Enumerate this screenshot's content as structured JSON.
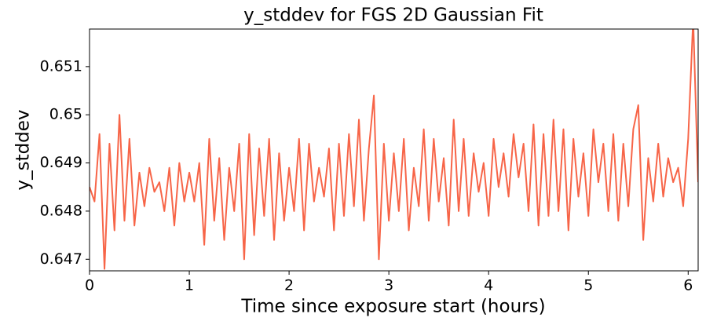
{
  "chart_data": {
    "type": "line",
    "title": "y_stddev for FGS 2D Gaussian Fit",
    "x_label": "Time since exposure start (hours)",
    "y_label": "y_stddev",
    "xlim": [
      0,
      6.1
    ],
    "ylim": [
      0.64676,
      0.65178
    ],
    "xticks": [
      0,
      1,
      2,
      3,
      4,
      5,
      6
    ],
    "yticks": [
      0.647,
      0.648,
      0.649,
      0.65,
      0.651
    ],
    "x": [
      0,
      0.05,
      0.1,
      0.15,
      0.2,
      0.25,
      0.3,
      0.35,
      0.4,
      0.45,
      0.5,
      0.55,
      0.6,
      0.65,
      0.7,
      0.75,
      0.8,
      0.85,
      0.9,
      0.95,
      1,
      1.05,
      1.1,
      1.15,
      1.2,
      1.25,
      1.3,
      1.35,
      1.4,
      1.45,
      1.5,
      1.55,
      1.6,
      1.65,
      1.7,
      1.75,
      1.8,
      1.85,
      1.9,
      1.95,
      2,
      2.05,
      2.1,
      2.15,
      2.2,
      2.25,
      2.3,
      2.35,
      2.4,
      2.45,
      2.5,
      2.55,
      2.6,
      2.65,
      2.7,
      2.75,
      2.8,
      2.85,
      2.9,
      2.95,
      3,
      3.05,
      3.1,
      3.15,
      3.2,
      3.25,
      3.3,
      3.35,
      3.4,
      3.45,
      3.5,
      3.55,
      3.6,
      3.65,
      3.7,
      3.75,
      3.8,
      3.85,
      3.9,
      3.95,
      4,
      4.05,
      4.1,
      4.15,
      4.2,
      4.25,
      4.3,
      4.35,
      4.4,
      4.45,
      4.5,
      4.55,
      4.6,
      4.65,
      4.7,
      4.75,
      4.8,
      4.85,
      4.9,
      4.95,
      5,
      5.05,
      5.1,
      5.15,
      5.2,
      5.25,
      5.3,
      5.35,
      5.4,
      5.45,
      5.5,
      5.55,
      5.6,
      5.65,
      5.7,
      5.75,
      5.8,
      5.85,
      5.9,
      5.95,
      6,
      6.05,
      6.1
    ],
    "series": [
      {
        "color": "#f76548",
        "values": [
          0.6485,
          0.6482,
          0.6496,
          0.6468,
          0.6494,
          0.6476,
          0.65,
          0.6478,
          0.6495,
          0.6477,
          0.6488,
          0.6481,
          0.6489,
          0.6484,
          0.6486,
          0.648,
          0.6489,
          0.6477,
          0.649,
          0.6482,
          0.6488,
          0.6482,
          0.649,
          0.6473,
          0.6495,
          0.6478,
          0.6491,
          0.6474,
          0.6489,
          0.648,
          0.6494,
          0.647,
          0.6496,
          0.6475,
          0.6493,
          0.6479,
          0.6495,
          0.6474,
          0.6492,
          0.6478,
          0.6489,
          0.648,
          0.6495,
          0.6476,
          0.6494,
          0.6482,
          0.6489,
          0.6483,
          0.6493,
          0.6476,
          0.6494,
          0.6479,
          0.6496,
          0.6481,
          0.6499,
          0.6478,
          0.6493,
          0.6504,
          0.647,
          0.6494,
          0.6478,
          0.6492,
          0.648,
          0.6495,
          0.6476,
          0.6489,
          0.6481,
          0.6497,
          0.6478,
          0.6495,
          0.6482,
          0.6491,
          0.6477,
          0.6499,
          0.648,
          0.6495,
          0.6479,
          0.6492,
          0.6484,
          0.649,
          0.6479,
          0.6495,
          0.6485,
          0.6492,
          0.6483,
          0.6496,
          0.6487,
          0.6494,
          0.648,
          0.6498,
          0.6477,
          0.6496,
          0.6479,
          0.6499,
          0.648,
          0.6497,
          0.6476,
          0.6495,
          0.6483,
          0.6492,
          0.6479,
          0.6497,
          0.6486,
          0.6494,
          0.648,
          0.6496,
          0.6478,
          0.6494,
          0.6481,
          0.6497,
          0.6502,
          0.6474,
          0.6491,
          0.6482,
          0.6494,
          0.6483,
          0.6491,
          0.6486,
          0.6489,
          0.6481,
          0.6495,
          0.652,
          0.6486
        ]
      }
    ]
  }
}
